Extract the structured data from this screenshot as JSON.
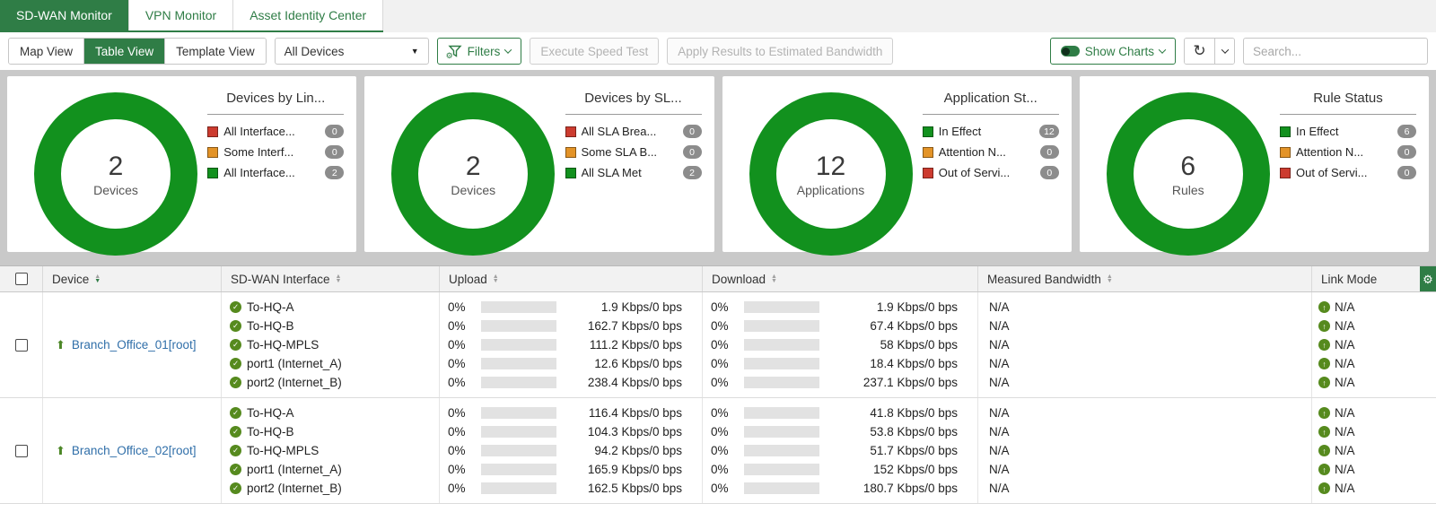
{
  "colors": {
    "accent_green": "#2f7d46",
    "donut_green": "#12911e",
    "red": "#cc3b2f",
    "orange": "#e39327",
    "badge_gray": "#8c8c8c",
    "link_blue": "#306fa9",
    "status_olive": "#568a1e"
  },
  "tabs": {
    "items": [
      {
        "label": "SD-WAN Monitor",
        "active": true
      },
      {
        "label": "VPN Monitor",
        "active": false
      },
      {
        "label": "Asset Identity Center",
        "active": false
      }
    ]
  },
  "toolbar": {
    "view_buttons": [
      {
        "label": "Map View",
        "active": false
      },
      {
        "label": "Table View",
        "active": true
      },
      {
        "label": "Template View",
        "active": false
      }
    ],
    "device_select_value": "All Devices",
    "filters_label": "Filters",
    "execute_speed_test_label": "Execute Speed Test",
    "apply_results_label": "Apply Results to Estimated Bandwidth",
    "show_charts_label": "Show Charts",
    "search_placeholder": "Search..."
  },
  "charts": [
    {
      "title": "Devices by Lin...",
      "type": "donut",
      "center_value": "2",
      "center_label": "Devices",
      "legend": [
        {
          "color": "#cc3b2f",
          "label": "All Interface...",
          "count": "0"
        },
        {
          "color": "#e39327",
          "label": "Some Interf...",
          "count": "0"
        },
        {
          "color": "#12911e",
          "label": "All Interface...",
          "count": "2"
        }
      ]
    },
    {
      "title": "Devices by SL...",
      "type": "donut",
      "center_value": "2",
      "center_label": "Devices",
      "legend": [
        {
          "color": "#cc3b2f",
          "label": "All SLA Brea...",
          "count": "0"
        },
        {
          "color": "#e39327",
          "label": "Some SLA B...",
          "count": "0"
        },
        {
          "color": "#12911e",
          "label": "All SLA Met",
          "count": "2"
        }
      ]
    },
    {
      "title": "Application St...",
      "type": "donut",
      "center_value": "12",
      "center_label": "Applications",
      "legend": [
        {
          "color": "#12911e",
          "label": "In Effect",
          "count": "12"
        },
        {
          "color": "#e39327",
          "label": "Attention N...",
          "count": "0"
        },
        {
          "color": "#cc3b2f",
          "label": "Out of Servi...",
          "count": "0"
        }
      ]
    },
    {
      "title": "Rule Status",
      "type": "donut",
      "center_value": "6",
      "center_label": "Rules",
      "legend": [
        {
          "color": "#12911e",
          "label": "In Effect",
          "count": "6"
        },
        {
          "color": "#e39327",
          "label": "Attention N...",
          "count": "0"
        },
        {
          "color": "#cc3b2f",
          "label": "Out of Servi...",
          "count": "0"
        }
      ]
    }
  ],
  "table": {
    "columns": [
      {
        "label": "Device"
      },
      {
        "label": "SD-WAN Interface"
      },
      {
        "label": "Upload"
      },
      {
        "label": "Download"
      },
      {
        "label": "Measured Bandwidth"
      },
      {
        "label": "Link Mode"
      }
    ],
    "rows": [
      {
        "device": "Branch_Office_01[root]",
        "interfaces": [
          {
            "name": "To-HQ-A",
            "upload_pct": "0%",
            "upload": "1.9 Kbps/0 bps",
            "download_pct": "0%",
            "download": "1.9 Kbps/0 bps",
            "measured": "N/A",
            "link_mode": "N/A"
          },
          {
            "name": "To-HQ-B",
            "upload_pct": "0%",
            "upload": "162.7 Kbps/0 bps",
            "download_pct": "0%",
            "download": "67.4 Kbps/0 bps",
            "measured": "N/A",
            "link_mode": "N/A"
          },
          {
            "name": "To-HQ-MPLS",
            "upload_pct": "0%",
            "upload": "111.2 Kbps/0 bps",
            "download_pct": "0%",
            "download": "58 Kbps/0 bps",
            "measured": "N/A",
            "link_mode": "N/A"
          },
          {
            "name": "port1 (Internet_A)",
            "upload_pct": "0%",
            "upload": "12.6 Kbps/0 bps",
            "download_pct": "0%",
            "download": "18.4 Kbps/0 bps",
            "measured": "N/A",
            "link_mode": "N/A"
          },
          {
            "name": "port2 (Internet_B)",
            "upload_pct": "0%",
            "upload": "238.4 Kbps/0 bps",
            "download_pct": "0%",
            "download": "237.1 Kbps/0 bps",
            "measured": "N/A",
            "link_mode": "N/A"
          }
        ]
      },
      {
        "device": "Branch_Office_02[root]",
        "interfaces": [
          {
            "name": "To-HQ-A",
            "upload_pct": "0%",
            "upload": "116.4 Kbps/0 bps",
            "download_pct": "0%",
            "download": "41.8 Kbps/0 bps",
            "measured": "N/A",
            "link_mode": "N/A"
          },
          {
            "name": "To-HQ-B",
            "upload_pct": "0%",
            "upload": "104.3 Kbps/0 bps",
            "download_pct": "0%",
            "download": "53.8 Kbps/0 bps",
            "measured": "N/A",
            "link_mode": "N/A"
          },
          {
            "name": "To-HQ-MPLS",
            "upload_pct": "0%",
            "upload": "94.2 Kbps/0 bps",
            "download_pct": "0%",
            "download": "51.7 Kbps/0 bps",
            "measured": "N/A",
            "link_mode": "N/A"
          },
          {
            "name": "port1 (Internet_A)",
            "upload_pct": "0%",
            "upload": "165.9 Kbps/0 bps",
            "download_pct": "0%",
            "download": "152 Kbps/0 bps",
            "measured": "N/A",
            "link_mode": "N/A"
          },
          {
            "name": "port2 (Internet_B)",
            "upload_pct": "0%",
            "upload": "162.5 Kbps/0 bps",
            "download_pct": "0%",
            "download": "180.7 Kbps/0 bps",
            "measured": "N/A",
            "link_mode": "N/A"
          }
        ]
      }
    ]
  }
}
